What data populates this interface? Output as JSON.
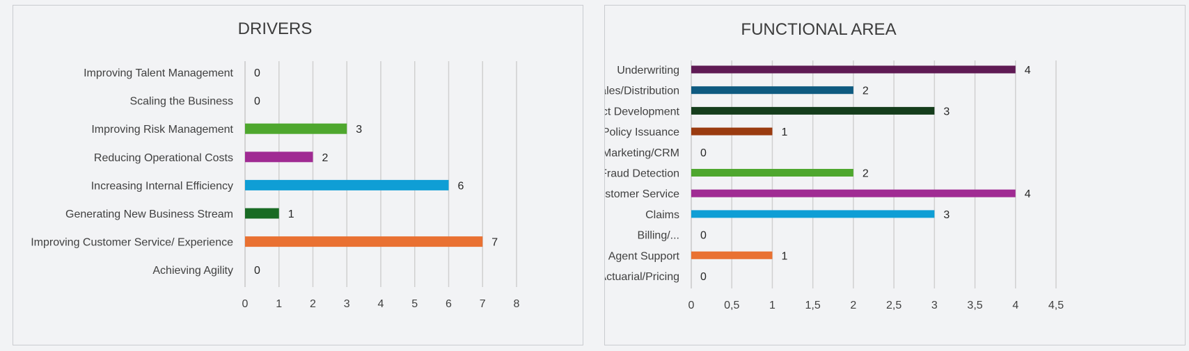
{
  "chart_data": [
    {
      "type": "bar",
      "orientation": "horizontal",
      "title": "DRIVERS",
      "categories": [
        "Improving Talent Management",
        "Scaling the Business",
        "Improving Risk Management",
        "Reducing Operational Costs",
        "Increasing Internal Efficiency",
        "Generating New Business Stream",
        "Improving Customer Service/ Experience",
        "Achieving Agility"
      ],
      "values": [
        0,
        0,
        3,
        2,
        6,
        1,
        7,
        0
      ],
      "colors": [
        "#1f4e79",
        "#1f4e79",
        "#4ea72e",
        "#a02b93",
        "#0f9ed5",
        "#196b24",
        "#e97132",
        "#1f4e79"
      ],
      "xlim": [
        0,
        8
      ],
      "xticks": [
        "0",
        "1",
        "2",
        "3",
        "4",
        "5",
        "6",
        "7",
        "8"
      ],
      "grid": true
    },
    {
      "type": "bar",
      "orientation": "horizontal",
      "title": "FUNCTIONAL AREA",
      "categories": [
        "Underwriting",
        "Sales/Distribution",
        "Product Development",
        "Policy Issuance",
        "Marketing/CRM",
        "Fraud Detection",
        "Customer Service",
        "Claims",
        "Billing/...",
        "Agent Support",
        "Actuarial/Pricing"
      ],
      "values": [
        4,
        2,
        3,
        1,
        0,
        2,
        4,
        3,
        0,
        1,
        0
      ],
      "colors": [
        "#5f1a54",
        "#0e5a80",
        "#153d1c",
        "#9a3b10",
        "#1f4e79",
        "#4ea72e",
        "#a02b93",
        "#0f9ed5",
        "#1f4e79",
        "#e97132",
        "#1f4e79"
      ],
      "xlim": [
        0,
        4.5
      ],
      "xticks": [
        "0",
        "0,5",
        "1",
        "1,5",
        "2",
        "2,5",
        "3",
        "3,5",
        "4",
        "4,5"
      ],
      "grid": true
    }
  ]
}
